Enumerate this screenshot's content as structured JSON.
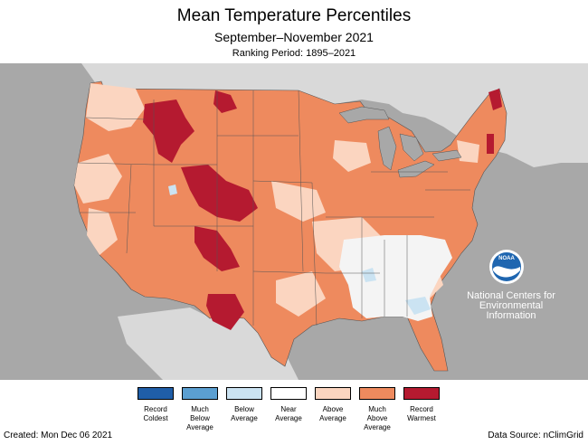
{
  "header": {
    "title": "Mean Temperature Percentiles",
    "subtitle": "September–November 2021",
    "ranking_period": "Ranking Period: 1895–2021"
  },
  "map": {
    "land_color": "#d9d9d9",
    "water_color": "#a8a8a8",
    "categories": [
      {
        "name": "record-coldest",
        "color": "#1f5ea8"
      },
      {
        "name": "much-below",
        "color": "#5b9fd1"
      },
      {
        "name": "below",
        "color": "#cbe3f2"
      },
      {
        "name": "near",
        "color": "#f8f8f8"
      },
      {
        "name": "above",
        "color": "#fbd5c0"
      },
      {
        "name": "much-above",
        "color": "#ee8a5e"
      },
      {
        "name": "record-warmest",
        "color": "#b51a30"
      }
    ]
  },
  "legend": {
    "items": [
      {
        "label_line1": "Record",
        "label_line2": "Coldest",
        "label_line3": "",
        "color": "#1f5ea8"
      },
      {
        "label_line1": "Much",
        "label_line2": "Below",
        "label_line3": "Average",
        "color": "#5b9fd1"
      },
      {
        "label_line1": "Below",
        "label_line2": "Average",
        "label_line3": "",
        "color": "#cbe3f2"
      },
      {
        "label_line1": "Near",
        "label_line2": "Average",
        "label_line3": "",
        "color": "#ffffff"
      },
      {
        "label_line1": "Above",
        "label_line2": "Average",
        "label_line3": "",
        "color": "#fbd5c0"
      },
      {
        "label_line1": "Much",
        "label_line2": "Above",
        "label_line3": "Average",
        "color": "#ee8a5e"
      },
      {
        "label_line1": "Record",
        "label_line2": "Warmest",
        "label_line3": "",
        "color": "#b51a30"
      }
    ]
  },
  "branding": {
    "logo_text": "NOAA",
    "org_line1": "National Centers for",
    "org_line2": "Environmental",
    "org_line3": "Information"
  },
  "footer": {
    "created": "Created: Mon Dec 06 2021",
    "source": "Data Source: nClimGrid"
  }
}
